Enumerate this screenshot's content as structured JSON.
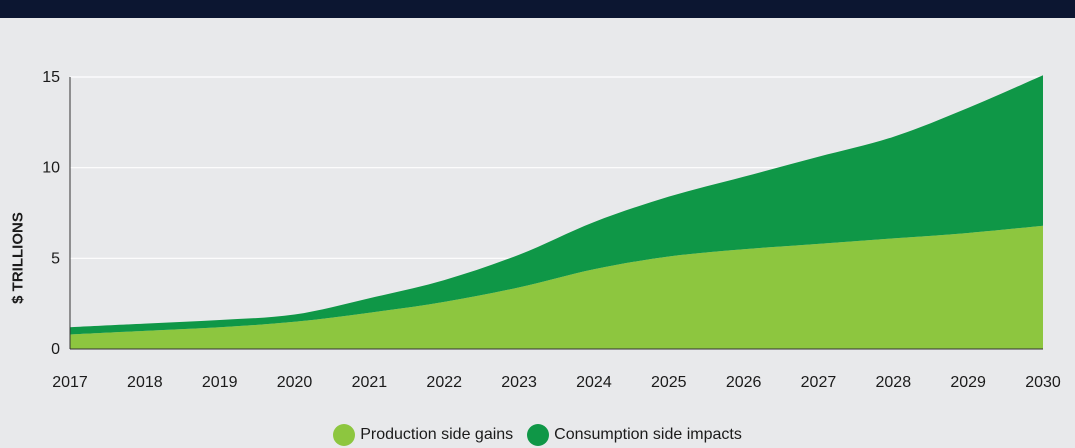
{
  "chart_data": {
    "type": "area",
    "stacked": true,
    "ylabel": "$ TRILLIONS",
    "xlabel": "",
    "ylim": [
      0,
      15
    ],
    "yticks": [
      0,
      5,
      10,
      15
    ],
    "x": [
      2017,
      2018,
      2019,
      2020,
      2021,
      2022,
      2023,
      2024,
      2025,
      2026,
      2027,
      2028,
      2029,
      2030
    ],
    "grid": "horizontal",
    "legend_position": "bottom-center",
    "series": [
      {
        "name": "Production side gains",
        "color": "#8dc63f",
        "values": [
          0.8,
          1.0,
          1.2,
          1.5,
          2.0,
          2.6,
          3.4,
          4.4,
          5.1,
          5.5,
          5.8,
          6.1,
          6.4,
          6.8
        ]
      },
      {
        "name": "Consumption side impacts",
        "color": "#0f9747",
        "values": [
          0.4,
          0.4,
          0.4,
          0.4,
          0.8,
          1.2,
          1.8,
          2.6,
          3.3,
          4.0,
          4.8,
          5.6,
          6.9,
          8.3
        ]
      }
    ]
  }
}
